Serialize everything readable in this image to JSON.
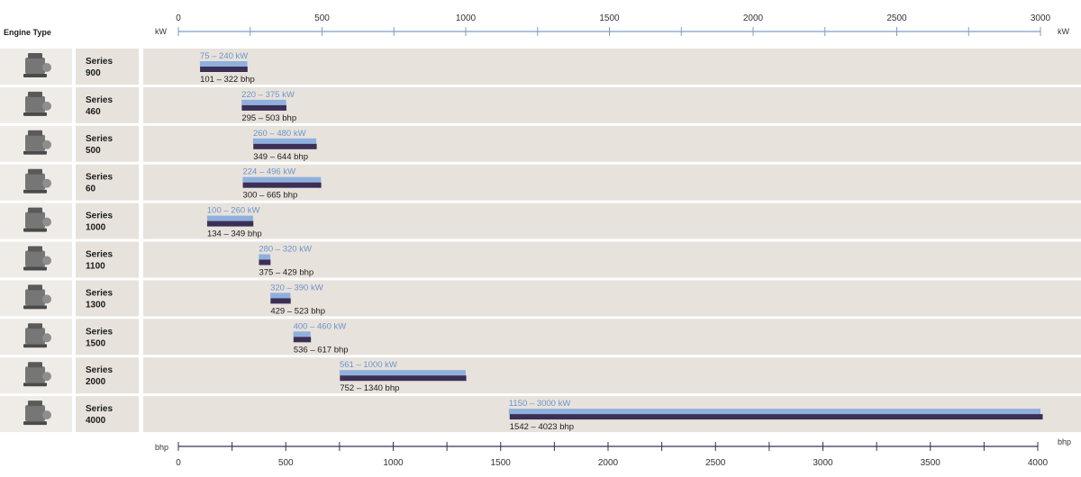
{
  "header": {
    "engine_type_label": "Engine Type"
  },
  "colors": {
    "kw_bar": "#8fb0dd",
    "bhp_bar": "#3b2f55",
    "kw_text": "#6d95c9",
    "row_bg": "#e7e2dc",
    "axis": "#7d9ec8"
  },
  "chart_data": {
    "type": "bar",
    "orientation": "horizontal-range",
    "axes": {
      "top": {
        "unit": "kW",
        "range": [
          0,
          3000
        ],
        "ticks": [
          0,
          500,
          1000,
          1500,
          2000,
          2500,
          3000
        ],
        "tick_labels": [
          "0",
          "500",
          "1000",
          "1500",
          "2000",
          "2500",
          "3000"
        ]
      },
      "bottom": {
        "unit": "bhp",
        "range": [
          0,
          4000
        ],
        "ticks": [
          0,
          500,
          1000,
          1500,
          2000,
          2500,
          3000,
          3500,
          4000
        ],
        "tick_labels": [
          "0",
          "500",
          "1000",
          "1500",
          "2000",
          "2500",
          "3000",
          "3500",
          "4000"
        ]
      }
    },
    "rows": [
      {
        "name": "Series 900",
        "line1": "Series",
        "line2": "900",
        "kw": [
          75,
          240
        ],
        "bhp": [
          101,
          322
        ],
        "kw_label": "75 – 240 kW",
        "bhp_label": "101 – 322 bhp"
      },
      {
        "name": "Series 460",
        "line1": "Series",
        "line2": "460",
        "kw": [
          220,
          375
        ],
        "bhp": [
          295,
          503
        ],
        "kw_label": "220 – 375 kW",
        "bhp_label": "295 – 503 bhp"
      },
      {
        "name": "Series 500",
        "line1": "Series",
        "line2": "500",
        "kw": [
          260,
          480
        ],
        "bhp": [
          349,
          644
        ],
        "kw_label": "260 – 480 kW",
        "bhp_label": "349 – 644 bhp"
      },
      {
        "name": "Series 60",
        "line1": "Series",
        "line2": "60",
        "kw": [
          224,
          496
        ],
        "bhp": [
          300,
          665
        ],
        "kw_label": "224 – 496 kW",
        "bhp_label": "300 – 665 bhp"
      },
      {
        "name": "Series 1000",
        "line1": "Series",
        "line2": "1000",
        "kw": [
          100,
          260
        ],
        "bhp": [
          134,
          349
        ],
        "kw_label": "100 – 260 kW",
        "bhp_label": "134 – 349 bhp"
      },
      {
        "name": "Series 1100",
        "line1": "Series",
        "line2": "1100",
        "kw": [
          280,
          320
        ],
        "bhp": [
          375,
          429
        ],
        "kw_label": "280 – 320 kW",
        "bhp_label": "375 – 429 bhp"
      },
      {
        "name": "Series 1300",
        "line1": "Series",
        "line2": "1300",
        "kw": [
          320,
          390
        ],
        "bhp": [
          429,
          523
        ],
        "kw_label": "320 – 390 kW",
        "bhp_label": "429 – 523 bhp"
      },
      {
        "name": "Series 1500",
        "line1": "Series",
        "line2": "1500",
        "kw": [
          400,
          460
        ],
        "bhp": [
          536,
          617
        ],
        "kw_label": "400 – 460 kW",
        "bhp_label": "536 – 617 bhp"
      },
      {
        "name": "Series 2000",
        "line1": "Series",
        "line2": "2000",
        "kw": [
          561,
          1000
        ],
        "bhp": [
          752,
          1340
        ],
        "kw_label": "561 – 1000 kW",
        "bhp_label": "752 – 1340 bhp"
      },
      {
        "name": "Series 4000",
        "line1": "Series",
        "line2": "4000",
        "kw": [
          1150,
          3000
        ],
        "bhp": [
          1542,
          4023
        ],
        "kw_label": "1150 – 3000 kW",
        "bhp_label": "1542 – 4023 bhp"
      }
    ]
  }
}
